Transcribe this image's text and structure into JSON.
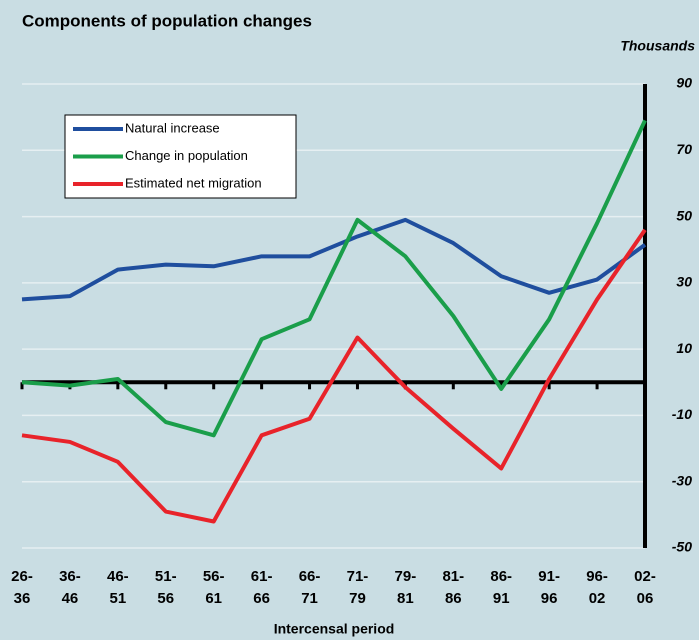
{
  "chart_data": {
    "type": "line",
    "title": "Components of population changes",
    "y_unit_label": "Thousands",
    "x_label": "Intercensal period",
    "categories": [
      "26-36",
      "36-46",
      "46-51",
      "51-56",
      "56-61",
      "61-66",
      "66-71",
      "71-79",
      "79-81",
      "81-86",
      "86-91",
      "91-96",
      "96-02",
      "02-06"
    ],
    "series": [
      {
        "name": "Natural increase",
        "color": "#1f4e9e",
        "values": [
          25,
          26,
          34,
          35.5,
          35,
          38,
          38,
          44,
          49,
          42,
          32,
          27,
          31,
          41.5
        ]
      },
      {
        "name": "Change in population",
        "color": "#1a9e4a",
        "values": [
          0,
          -1,
          1,
          -12,
          -16,
          13,
          19,
          49,
          38,
          20,
          -2,
          19,
          48,
          79
        ]
      },
      {
        "name": "Estimated net migration",
        "color": "#e8232a",
        "values": [
          -16,
          -18,
          -24,
          -39,
          -42,
          -16,
          -11,
          13.5,
          -1.5,
          -14,
          -26,
          1,
          25,
          46
        ]
      }
    ],
    "ylim": [
      -50,
      90
    ],
    "yticks": [
      -50,
      -30,
      -10,
      10,
      30,
      50,
      70,
      90
    ],
    "grid": true,
    "legend": "upper left"
  }
}
